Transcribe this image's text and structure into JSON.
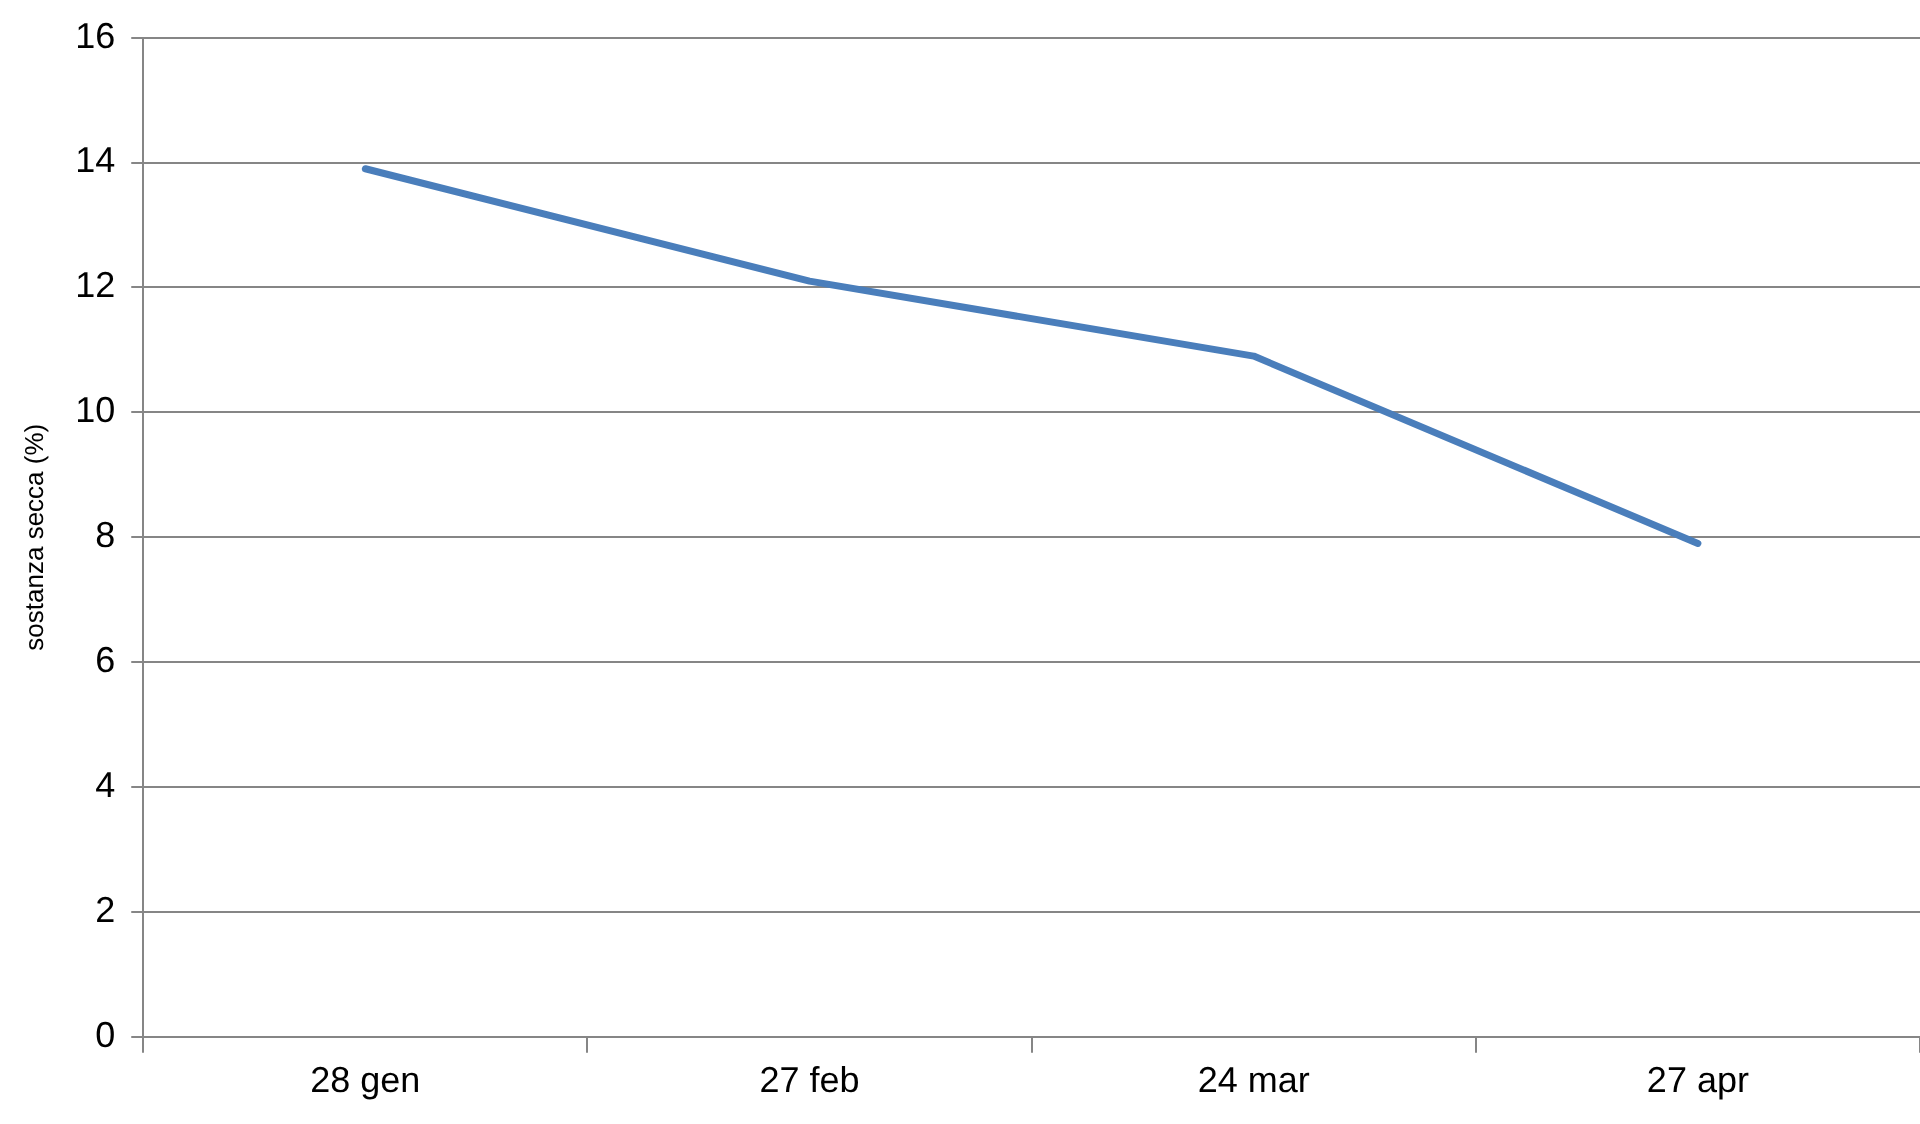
{
  "chart_data": {
    "type": "line",
    "ylabel": "sostanza secca (%)",
    "categories": [
      "28 gen",
      "27 feb",
      "24 mar",
      "27 apr"
    ],
    "series": [
      {
        "color": "#4a7ebb",
        "values": [
          13.9,
          12.1,
          10.9,
          7.9
        ]
      }
    ],
    "ylim": [
      0,
      16
    ],
    "yticks": [
      0,
      2,
      4,
      6,
      8,
      10,
      12,
      14,
      16
    ],
    "grid": "y",
    "marker": "none",
    "line_style": "solid"
  }
}
